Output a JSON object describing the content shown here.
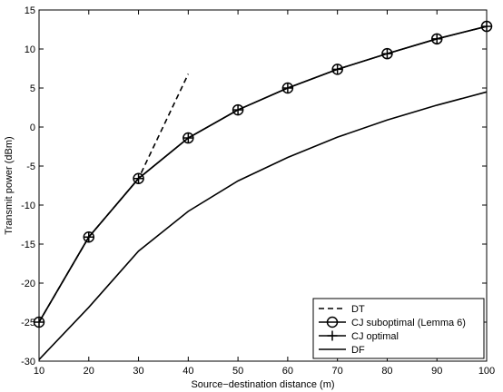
{
  "chart_data": {
    "type": "line",
    "title": "",
    "xlabel": "Source−destination distance (m)",
    "ylabel": "Transmit power (dBm)",
    "xlim": [
      10,
      100
    ],
    "ylim": [
      -30,
      15
    ],
    "xticks": [
      10,
      20,
      30,
      40,
      50,
      60,
      70,
      80,
      90,
      100
    ],
    "yticks": [
      -30,
      -25,
      -20,
      -15,
      -10,
      -5,
      0,
      5,
      10,
      15
    ],
    "grid": false,
    "legend_position": "bottom-right",
    "series": [
      {
        "name": "DT",
        "style": "dashed",
        "marker": "none",
        "color": "#000000",
        "x": [
          10,
          20,
          30,
          40
        ],
        "y": [
          -25,
          -14.1,
          -6.6,
          6.8
        ]
      },
      {
        "name": "CJ suboptimal (Lemma 6)",
        "style": "solid",
        "marker": "circle",
        "color": "#000000",
        "x": [
          10,
          20,
          30,
          40,
          50,
          60,
          70,
          80,
          90,
          100
        ],
        "y": [
          -25,
          -14.1,
          -6.6,
          -1.4,
          2.2,
          5.0,
          7.4,
          9.4,
          11.3,
          12.9
        ]
      },
      {
        "name": "CJ optimal",
        "style": "solid",
        "marker": "plus",
        "color": "#000000",
        "x": [
          10,
          20,
          30,
          40,
          50,
          60,
          70,
          80,
          90,
          100
        ],
        "y": [
          -25,
          -14.1,
          -6.6,
          -1.4,
          2.2,
          5.0,
          7.4,
          9.4,
          11.3,
          12.9
        ]
      },
      {
        "name": "DF",
        "style": "solid",
        "marker": "none",
        "color": "#000000",
        "x": [
          10,
          20,
          30,
          40,
          50,
          60,
          70,
          80,
          90,
          100
        ],
        "y": [
          -29.8,
          -23.1,
          -15.9,
          -10.8,
          -6.9,
          -3.9,
          -1.3,
          0.9,
          2.8,
          4.5
        ]
      }
    ]
  }
}
